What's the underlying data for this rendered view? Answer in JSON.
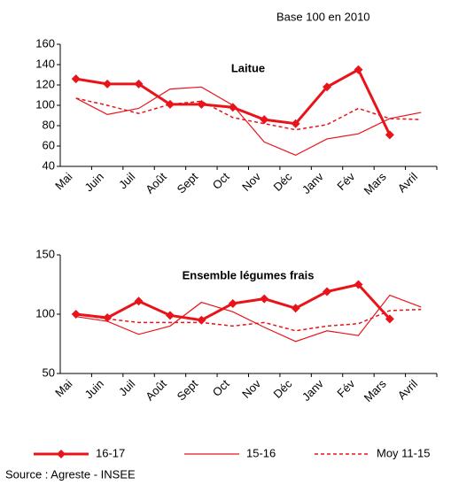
{
  "note": "Base 100 en 2010",
  "source": "Source : Agreste - INSEE",
  "chart_data": [
    {
      "type": "line",
      "title": "Laitue",
      "categories": [
        "Mai",
        "Juin",
        "Juil",
        "Août",
        "Sept",
        "Oct",
        "Nov",
        "Déc",
        "Janv",
        "Fév",
        "Mars",
        "Avril"
      ],
      "series": [
        {
          "name": "16-17",
          "color": "#e8141a",
          "values": [
            126,
            121,
            121,
            101,
            101,
            98,
            86,
            82,
            118,
            135,
            71,
            null
          ]
        },
        {
          "name": "15-16",
          "color": "#e8141a",
          "values": [
            107,
            91,
            97,
            116,
            118,
            100,
            64,
            51,
            67,
            72,
            87,
            93
          ]
        },
        {
          "name": "Moy 11-15",
          "color": "#e8141a",
          "values": [
            107,
            100,
            92,
            101,
            104,
            88,
            82,
            76,
            81,
            97,
            87,
            86
          ]
        }
      ],
      "ylim": [
        40,
        160
      ],
      "yticks": [
        40,
        60,
        80,
        100,
        120,
        140,
        160
      ]
    },
    {
      "type": "line",
      "title": "Ensemble légumes frais",
      "categories": [
        "Mai",
        "Juin",
        "Juil",
        "Août",
        "Sept",
        "Oct",
        "Nov",
        "Déc",
        "Janv",
        "Fév",
        "Mars",
        "Avril"
      ],
      "series": [
        {
          "color": "#e8141a",
          "values": [
            100,
            97,
            111,
            99,
            95,
            109,
            113,
            105,
            119,
            125,
            96,
            null
          ]
        },
        {
          "color": "#e8141a",
          "values": [
            98,
            94,
            83,
            90,
            110,
            102,
            89,
            77,
            86,
            82,
            116,
            106
          ]
        },
        {
          "color": "#e8141a",
          "values": [
            100,
            96,
            93,
            93,
            93,
            90,
            93,
            86,
            90,
            92,
            103,
            104
          ]
        }
      ],
      "ylim": [
        50,
        150
      ],
      "yticks": [
        50,
        100,
        150
      ]
    }
  ]
}
